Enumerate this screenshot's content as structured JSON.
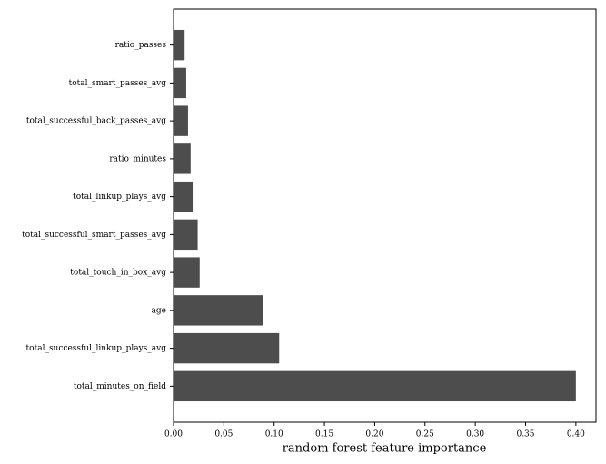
{
  "chart_data": {
    "type": "barh",
    "x_label": "random forest feature importance",
    "categories": [
      "total_minutes_on_field",
      "total_successful_linkup_plays_avg",
      "age",
      "total_touch_in_box_avg",
      "total_successful_smart_passes_avg",
      "total_linkup_plays_avg",
      "ratio_minutes",
      "total_successful_back_passes_avg",
      "total_smart_passes_avg",
      "ratio_passes"
    ],
    "values": [
      0.4,
      0.105,
      0.089,
      0.026,
      0.024,
      0.019,
      0.017,
      0.0144,
      0.0126,
      0.011
    ],
    "color": "#4d4d4d",
    "xlim": [
      0,
      0.42
    ],
    "xticks": [
      {
        "value": 0,
        "label": "0.00"
      },
      0.05,
      {
        "value": 0.1,
        "label": "0.10"
      },
      0.15,
      {
        "value": 0.2,
        "label": "0.20"
      },
      0.25,
      {
        "value": 0.3,
        "label": "0.30"
      },
      0.35,
      {
        "value": 0.4,
        "label": "0.40"
      }
    ]
  }
}
